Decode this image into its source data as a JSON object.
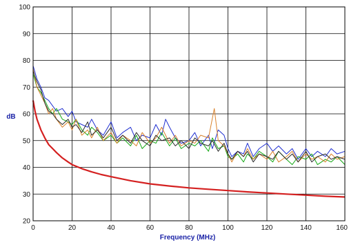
{
  "chart_data": {
    "type": "line",
    "title": "",
    "xlabel": "Frequency (MHz)",
    "ylabel": "dB",
    "xlim": [
      0,
      160
    ],
    "ylim": [
      20,
      100
    ],
    "xticks": [
      0,
      20,
      40,
      60,
      80,
      100,
      120,
      140,
      160
    ],
    "yticks": [
      20,
      30,
      40,
      50,
      60,
      70,
      80,
      90,
      100
    ],
    "grid": true,
    "legend": "none",
    "series": [
      {
        "color": "#1f2fd0",
        "width": 1,
        "x": [
          0,
          2,
          4,
          6,
          8,
          10,
          12,
          15,
          18,
          20,
          22,
          25,
          28,
          30,
          33,
          36,
          40,
          43,
          46,
          50,
          53,
          56,
          60,
          63,
          66,
          68,
          70,
          73,
          76,
          80,
          83,
          86,
          90,
          92,
          95,
          98,
          100,
          102,
          105,
          108,
          110,
          113,
          116,
          120,
          123,
          126,
          130,
          133,
          136,
          140,
          143,
          146,
          150,
          153,
          156,
          160
        ],
        "y": [
          78,
          73,
          70,
          66,
          65,
          63,
          61,
          62,
          59,
          61,
          57,
          56,
          55,
          58,
          54,
          52,
          57,
          51,
          53,
          55,
          50,
          52,
          51,
          56,
          52,
          58,
          55,
          51,
          49,
          50,
          53,
          48,
          52,
          47,
          54,
          52,
          47,
          44,
          46,
          45,
          49,
          44,
          47,
          49,
          46,
          48,
          45,
          47,
          43,
          47,
          44,
          46,
          44,
          47,
          45,
          46
        ]
      },
      {
        "color": "#15a815",
        "width": 1,
        "x": [
          0,
          2,
          4,
          6,
          8,
          10,
          12,
          15,
          18,
          20,
          22,
          25,
          28,
          30,
          33,
          36,
          40,
          43,
          46,
          50,
          53,
          56,
          60,
          63,
          66,
          70,
          73,
          76,
          80,
          83,
          86,
          90,
          92,
          95,
          98,
          100,
          102,
          105,
          108,
          110,
          113,
          116,
          120,
          123,
          126,
          130,
          133,
          136,
          140,
          143,
          146,
          150,
          153,
          156,
          160
        ],
        "y": [
          75,
          70,
          68,
          65,
          62,
          60,
          62,
          58,
          57,
          56,
          58,
          54,
          52,
          55,
          53,
          50,
          52,
          49,
          51,
          48,
          52,
          47,
          50,
          49,
          53,
          48,
          51,
          47,
          49,
          48,
          50,
          46,
          51,
          47,
          48,
          44,
          43,
          45,
          42,
          45,
          43,
          46,
          44,
          42,
          46,
          43,
          41,
          44,
          43,
          45,
          41,
          43,
          42,
          44,
          41
        ]
      },
      {
        "color": "#d9822b",
        "width": 1,
        "x": [
          0,
          2,
          4,
          6,
          8,
          10,
          12,
          15,
          18,
          20,
          22,
          25,
          28,
          30,
          33,
          36,
          40,
          43,
          46,
          50,
          53,
          56,
          60,
          63,
          66,
          70,
          73,
          76,
          80,
          83,
          86,
          90,
          93,
          95,
          98,
          100,
          102,
          105,
          108,
          110,
          113,
          116,
          120,
          123,
          126,
          130,
          133,
          136,
          140,
          143,
          146,
          150,
          153,
          156,
          160
        ],
        "y": [
          77,
          70,
          67,
          64,
          60,
          62,
          58,
          55,
          57,
          54,
          58,
          52,
          54,
          51,
          55,
          50,
          53,
          49,
          52,
          50,
          48,
          53,
          49,
          51,
          55,
          49,
          52,
          48,
          50,
          49,
          52,
          51,
          62,
          50,
          48,
          45,
          42,
          46,
          44,
          47,
          43,
          45,
          43,
          46,
          42,
          44,
          46,
          42,
          45,
          43,
          44,
          42,
          45,
          43,
          44
        ]
      },
      {
        "color": "#2a2a2a",
        "width": 1,
        "x": [
          0,
          2,
          4,
          6,
          8,
          10,
          12,
          15,
          18,
          20,
          22,
          25,
          28,
          30,
          33,
          36,
          40,
          43,
          46,
          50,
          53,
          56,
          60,
          63,
          66,
          70,
          73,
          76,
          80,
          83,
          86,
          90,
          92,
          95,
          98,
          100,
          102,
          105,
          108,
          110,
          113,
          116,
          120,
          123,
          126,
          130,
          133,
          136,
          140,
          143,
          146,
          150,
          153,
          156,
          160
        ],
        "y": [
          76,
          72,
          69,
          64,
          61,
          60,
          58,
          56,
          58,
          55,
          56,
          53,
          57,
          52,
          54,
          51,
          55,
          50,
          52,
          49,
          53,
          50,
          48,
          52,
          50,
          51,
          48,
          50,
          47,
          51,
          49,
          48,
          50,
          46,
          49,
          45,
          43,
          46,
          44,
          46,
          42,
          45,
          44,
          43,
          46,
          43,
          45,
          42,
          46,
          42,
          44,
          45,
          43,
          44,
          43
        ]
      },
      {
        "color": "#d42020",
        "width": 2.2,
        "x": [
          0,
          1,
          2,
          4,
          6,
          8,
          10,
          12,
          15,
          18,
          20,
          25,
          30,
          35,
          40,
          50,
          60,
          70,
          80,
          90,
          100,
          110,
          120,
          130,
          140,
          150,
          160
        ],
        "y": [
          65,
          61,
          58,
          54,
          51,
          48.5,
          47,
          45.5,
          43.5,
          42,
          41,
          39.5,
          38.3,
          37.3,
          36.5,
          35,
          33.8,
          33,
          32.3,
          31.8,
          31.3,
          30.8,
          30.4,
          30,
          29.6,
          29.2,
          28.9
        ]
      }
    ]
  }
}
